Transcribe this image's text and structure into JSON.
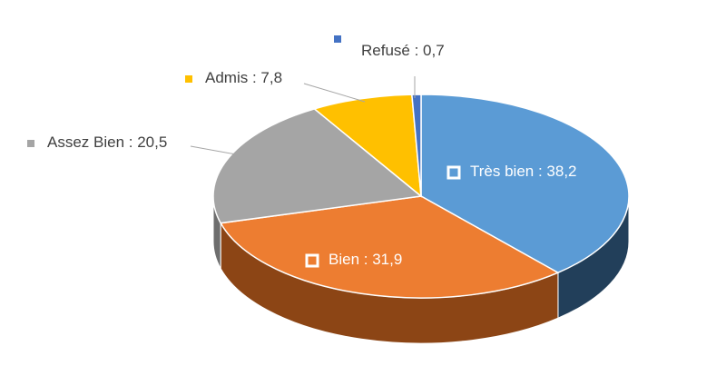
{
  "chart_data": {
    "type": "pie3d",
    "categories": [
      "Très bien",
      "Bien",
      "Assez Bien",
      "Admis",
      "Refusé"
    ],
    "values": [
      38.2,
      31.9,
      20.5,
      7.8,
      0.7
    ],
    "value_labels": [
      "38,2",
      "31,9",
      "20,5",
      "7,8",
      "0,7"
    ],
    "label_separator": " : ",
    "colors": [
      "#5b9bd5",
      "#ed7d31",
      "#a5a5a5",
      "#ffc000",
      "#4472c4"
    ],
    "side_colors": [
      "#223f5a",
      "#8c4515",
      "#6e6e6e",
      "#a07800",
      "#2b4a80"
    ]
  }
}
